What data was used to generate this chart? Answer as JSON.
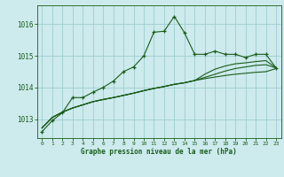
{
  "title": "Graphe pression niveau de la mer (hPa)",
  "bg_color": "#cdeaed",
  "grid_color": "#9ecece",
  "line_color": "#1a5c1a",
  "xlim": [
    -0.5,
    23.5
  ],
  "ylim": [
    1012.4,
    1016.6
  ],
  "yticks": [
    1013,
    1014,
    1015,
    1016
  ],
  "xticks": [
    0,
    1,
    2,
    3,
    4,
    5,
    6,
    7,
    8,
    9,
    10,
    11,
    12,
    13,
    14,
    15,
    16,
    17,
    18,
    19,
    20,
    21,
    22,
    23
  ],
  "series1": [
    1012.6,
    1012.95,
    1013.2,
    1013.68,
    1013.68,
    1013.85,
    1014.0,
    1014.2,
    1014.5,
    1014.65,
    1015.0,
    1015.75,
    1015.78,
    1016.25,
    1015.73,
    1015.05,
    1015.05,
    1015.15,
    1015.05,
    1015.05,
    1014.95,
    1015.05,
    1015.05,
    1014.62
  ],
  "series2": [
    1012.72,
    1013.05,
    1013.22,
    1013.35,
    1013.45,
    1013.55,
    1013.62,
    1013.68,
    1013.75,
    1013.82,
    1013.9,
    1013.97,
    1014.03,
    1014.1,
    1014.15,
    1014.22,
    1014.28,
    1014.33,
    1014.38,
    1014.42,
    1014.45,
    1014.48,
    1014.5,
    1014.6
  ],
  "series3": [
    1012.72,
    1013.05,
    1013.22,
    1013.35,
    1013.45,
    1013.55,
    1013.62,
    1013.68,
    1013.75,
    1013.82,
    1013.9,
    1013.97,
    1014.03,
    1014.1,
    1014.15,
    1014.22,
    1014.32,
    1014.42,
    1014.52,
    1014.6,
    1014.65,
    1014.7,
    1014.72,
    1014.62
  ],
  "series4": [
    1012.72,
    1013.05,
    1013.22,
    1013.35,
    1013.45,
    1013.55,
    1013.62,
    1013.68,
    1013.75,
    1013.82,
    1013.9,
    1013.97,
    1014.03,
    1014.1,
    1014.15,
    1014.22,
    1014.42,
    1014.58,
    1014.68,
    1014.75,
    1014.78,
    1014.82,
    1014.85,
    1014.62
  ]
}
